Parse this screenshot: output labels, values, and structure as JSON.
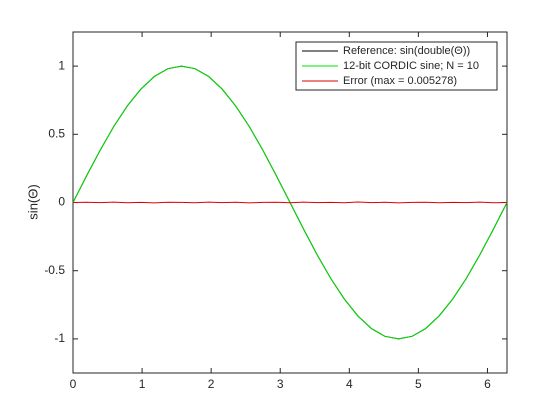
{
  "chart_data": {
    "type": "line",
    "ylabel": "sin(Θ)",
    "x": [
      0,
      0.196,
      0.393,
      0.589,
      0.785,
      0.982,
      1.178,
      1.374,
      1.571,
      1.767,
      1.963,
      2.16,
      2.356,
      2.553,
      2.749,
      2.945,
      3.142,
      3.338,
      3.534,
      3.731,
      3.927,
      4.123,
      4.32,
      4.516,
      4.712,
      4.909,
      5.105,
      5.301,
      5.498,
      5.694,
      5.89,
      6.087,
      6.283
    ],
    "series": [
      {
        "name": "Reference:  sin(double(Θ))",
        "color": "#000000",
        "values": [
          0,
          0.195,
          0.383,
          0.556,
          0.707,
          0.831,
          0.924,
          0.981,
          1,
          0.981,
          0.924,
          0.831,
          0.707,
          0.556,
          0.383,
          0.195,
          0,
          -0.195,
          -0.383,
          -0.556,
          -0.707,
          -0.831,
          -0.924,
          -0.981,
          -1,
          -0.981,
          -0.924,
          -0.831,
          -0.707,
          -0.556,
          -0.383,
          -0.195,
          0
        ]
      },
      {
        "name": "12-bit CORDIC sine; N = 10",
        "color": "#00e000",
        "values": [
          0,
          0.195,
          0.383,
          0.556,
          0.707,
          0.831,
          0.924,
          0.981,
          1,
          0.981,
          0.924,
          0.831,
          0.707,
          0.556,
          0.383,
          0.195,
          0,
          -0.195,
          -0.383,
          -0.556,
          -0.707,
          -0.831,
          -0.924,
          -0.981,
          -1,
          -0.981,
          -0.924,
          -0.831,
          -0.707,
          -0.556,
          -0.383,
          -0.195,
          0
        ]
      },
      {
        "name": "Error (max = 0.005278)",
        "color": "#e00000",
        "values": [
          0,
          0.002,
          -0.001,
          0.003,
          -0.002,
          0.001,
          -0.003,
          0.002,
          0.001,
          -0.002,
          0.003,
          -0.001,
          0.002,
          -0.003,
          0.001,
          0.002,
          -0.002,
          0.003,
          -0.001,
          0.001,
          -0.002,
          0.004,
          -0.001,
          0.002,
          -0.003,
          0.001,
          0.002,
          -0.002,
          0.001,
          -0.001,
          0.003,
          -0.002,
          0
        ]
      }
    ],
    "xlim": [
      0,
      6.283
    ],
    "xticks": [
      0,
      1,
      2,
      3,
      4,
      5,
      6
    ],
    "ylim": [
      -1.25,
      1.25
    ],
    "yticks": [
      -1,
      -0.5,
      0,
      0.5,
      1
    ],
    "grid": false,
    "legend": "northeast"
  }
}
